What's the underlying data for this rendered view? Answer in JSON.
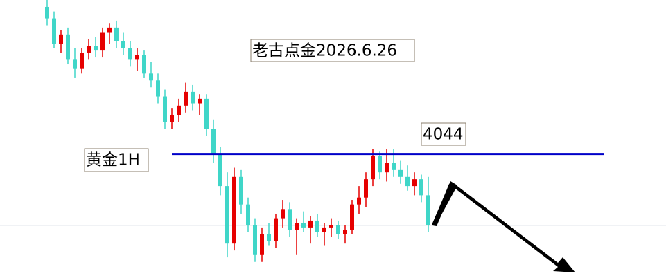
{
  "chart_data": {
    "type": "candlestick",
    "title": "黄金1H",
    "annotation": "老古点金2026.6.26",
    "level": 4044,
    "level_color": "#0000c8",
    "price_line": 4013,
    "price_line_color": "#8a9bb0",
    "ylim": [
      3990,
      4111
    ],
    "up_color": "#e60000",
    "down_color": "#3fd6c8",
    "open": [
      4108,
      4103,
      4092,
      4096,
      4085,
      4081,
      4088,
      4091,
      4089,
      4097,
      4099,
      4093,
      4090,
      4085,
      4087,
      4079,
      4076,
      4069,
      4058,
      4061,
      4065,
      4071,
      4066,
      4068,
      4055,
      4044,
      4030,
      4005,
      4034,
      4022,
      4013,
      4000,
      4009,
      4006,
      4016,
      4020,
      4011,
      4014,
      4012,
      4015,
      4010,
      4012,
      4013,
      4009,
      4011,
      4022,
      4025,
      4033,
      4043,
      4036,
      4040,
      4037,
      4034,
      4030,
      4033,
      4026
    ],
    "high": [
      4111,
      4106,
      4098,
      4099,
      4090,
      4090,
      4094,
      4095,
      4099,
      4101,
      4102,
      4097,
      4093,
      4090,
      4089,
      4084,
      4079,
      4072,
      4064,
      4068,
      4075,
      4074,
      4070,
      4070,
      4059,
      4047,
      4036,
      4038,
      4037,
      4025,
      4016,
      4012,
      4014,
      4018,
      4024,
      4023,
      4016,
      4019,
      4017,
      4018,
      4014,
      4016,
      4015,
      4013,
      4024,
      4030,
      4036,
      4046,
      4045,
      4046,
      4046,
      4041,
      4039,
      4036,
      4035,
      4034
    ],
    "low": [
      4100,
      4090,
      4088,
      4083,
      4077,
      4079,
      4085,
      4086,
      4086,
      4092,
      4090,
      4087,
      4082,
      4080,
      4077,
      4073,
      4066,
      4055,
      4055,
      4058,
      4062,
      4063,
      4061,
      4052,
      4040,
      4026,
      3999,
      4002,
      4018,
      4010,
      3997,
      3997,
      4004,
      4003,
      4012,
      4008,
      4000,
      4010,
      4005,
      4008,
      4004,
      4008,
      4007,
      4005,
      4009,
      4018,
      4021,
      4030,
      4033,
      4032,
      4034,
      4031,
      4028,
      4026,
      4023,
      4010
    ],
    "close": [
      4103,
      4092,
      4096,
      4085,
      4081,
      4088,
      4091,
      4089,
      4097,
      4099,
      4093,
      4090,
      4085,
      4087,
      4079,
      4076,
      4069,
      4058,
      4061,
      4065,
      4071,
      4066,
      4068,
      4055,
      4044,
      4030,
      4005,
      4034,
      4022,
      4013,
      4000,
      4009,
      4006,
      4016,
      4020,
      4011,
      4014,
      4012,
      4015,
      4010,
      4012,
      4013,
      4009,
      4011,
      4022,
      4025,
      4033,
      4043,
      4036,
      4040,
      4037,
      4034,
      4030,
      4033,
      4026,
      4013
    ]
  }
}
